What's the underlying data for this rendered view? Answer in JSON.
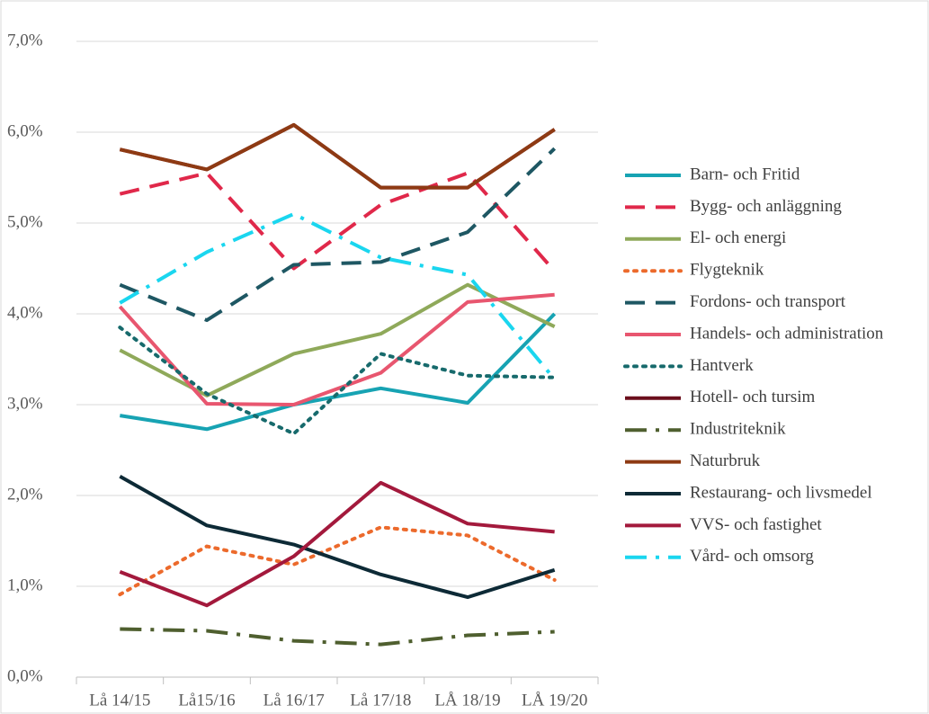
{
  "chart_data": {
    "type": "line",
    "categories": [
      "Lå 14/15",
      "Lå15/16",
      "Lå 16/17",
      "Lå 17/18",
      "LÅ 18/19",
      "LÅ 19/20"
    ],
    "ylim": [
      0,
      7
    ],
    "yticks": [
      {
        "value": 0,
        "label": "0,0%"
      },
      {
        "value": 1,
        "label": "1,0%"
      },
      {
        "value": 2,
        "label": "2,0%"
      },
      {
        "value": 3,
        "label": "3,0%"
      },
      {
        "value": 4,
        "label": "4,0%"
      },
      {
        "value": 5,
        "label": "5,0%"
      },
      {
        "value": 6,
        "label": "6,0%"
      },
      {
        "value": 7,
        "label": "7,0%"
      }
    ],
    "grid": true,
    "legend": "right",
    "series": [
      {
        "name": "Barn- och Fritid",
        "color": "#17a3b3",
        "style": "solid",
        "values": [
          2.88,
          2.73,
          3.0,
          3.18,
          3.02,
          4.0
        ]
      },
      {
        "name": "Bygg- och anläggning",
        "color": "#e0284a",
        "style": "dashed",
        "values": [
          5.32,
          5.55,
          4.5,
          5.2,
          5.55,
          4.47
        ]
      },
      {
        "name": "El- och energi",
        "color": "#8fa95a",
        "style": "solid",
        "values": [
          3.6,
          3.1,
          3.56,
          3.78,
          4.32,
          3.86
        ]
      },
      {
        "name": "Flygteknik",
        "color": "#ec6a2c",
        "style": "dotted",
        "values": [
          0.91,
          1.44,
          1.24,
          1.65,
          1.56,
          1.07
        ]
      },
      {
        "name": "Fordons- och transport",
        "color": "#1e5763",
        "style": "dashed",
        "values": [
          4.32,
          3.93,
          4.54,
          4.57,
          4.9,
          5.82
        ]
      },
      {
        "name": "Handels- och administration",
        "color": "#e8566f",
        "style": "solid",
        "values": [
          4.08,
          3.01,
          3.0,
          3.35,
          4.13,
          4.21
        ]
      },
      {
        "name": "Hantverk",
        "color": "#176a6c",
        "style": "dotted",
        "values": [
          3.85,
          3.12,
          2.68,
          3.56,
          3.32,
          3.3
        ]
      },
      {
        "name": "Hotell- och tursim",
        "color": "#6b0f1c",
        "style": "solid",
        "values": [
          5.81,
          5.59,
          6.08,
          5.39,
          5.39,
          6.03
        ]
      },
      {
        "name": "Industriteknik",
        "color": "#4f5f2f",
        "style": "dashdot",
        "values": [
          0.53,
          0.51,
          0.4,
          0.36,
          0.46,
          0.5
        ]
      },
      {
        "name": "Naturbruk",
        "color": "#8e3a13",
        "style": "solid",
        "values": [
          5.81,
          5.59,
          6.08,
          5.39,
          5.39,
          6.03
        ]
      },
      {
        "name": "Restaurang- och livsmedel",
        "color": "#0d2a36",
        "style": "solid",
        "values": [
          2.21,
          1.67,
          1.46,
          1.13,
          0.88,
          1.18
        ]
      },
      {
        "name": "VVS- och fastighet",
        "color": "#a3193c",
        "style": "solid",
        "values": [
          1.16,
          0.79,
          1.33,
          2.14,
          1.69,
          1.6
        ]
      },
      {
        "name": "Vård- och omsorg",
        "color": "#1ad6ef",
        "style": "dashdot",
        "values": [
          4.12,
          4.68,
          5.1,
          4.62,
          4.43,
          3.28
        ]
      }
    ]
  }
}
